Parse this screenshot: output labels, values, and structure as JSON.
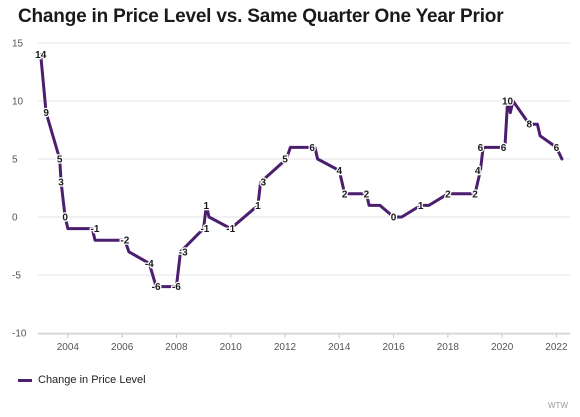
{
  "chart_data": {
    "type": "line",
    "title": "Change in Price Level vs. Same Quarter One Year Prior",
    "xlabel": "",
    "ylabel": "",
    "xlim": [
      2002.9,
      2022.5
    ],
    "ylim": [
      -10,
      15
    ],
    "y_ticks": [
      15,
      10,
      5,
      0,
      -5,
      -10
    ],
    "x_ticks": [
      2004,
      2006,
      2008,
      2010,
      2012,
      2014,
      2016,
      2018,
      2020,
      2022
    ],
    "grid": "horizontal",
    "legend_position": "bottom-left",
    "series": [
      {
        "name": "Change in Price Level",
        "color": "#4b1e6e",
        "points": [
          [
            2003.0,
            14
          ],
          [
            2003.2,
            9
          ],
          [
            2003.7,
            5
          ],
          [
            2003.75,
            3
          ],
          [
            2003.9,
            0
          ],
          [
            2004.0,
            -1
          ],
          [
            2004.9,
            -1
          ],
          [
            2005.0,
            -2
          ],
          [
            2006.1,
            -2
          ],
          [
            2006.25,
            -3
          ],
          [
            2007.0,
            -4
          ],
          [
            2007.25,
            -6
          ],
          [
            2008.0,
            -6
          ],
          [
            2008.15,
            -3
          ],
          [
            2009.0,
            -1
          ],
          [
            2009.1,
            1
          ],
          [
            2009.2,
            0
          ],
          [
            2010.0,
            -1
          ],
          [
            2011.0,
            1
          ],
          [
            2011.1,
            3
          ],
          [
            2012.05,
            5
          ],
          [
            2012.2,
            6
          ],
          [
            2013.1,
            6
          ],
          [
            2013.2,
            5
          ],
          [
            2014.0,
            4
          ],
          [
            2014.2,
            2
          ],
          [
            2015.0,
            2
          ],
          [
            2015.1,
            1
          ],
          [
            2015.5,
            1
          ],
          [
            2016.0,
            0
          ],
          [
            2016.3,
            0
          ],
          [
            2017.0,
            1
          ],
          [
            2017.3,
            1
          ],
          [
            2018.0,
            2
          ],
          [
            2019.0,
            2
          ],
          [
            2019.2,
            4
          ],
          [
            2019.3,
            6
          ],
          [
            2020.1,
            6
          ],
          [
            2020.2,
            10
          ],
          [
            2020.3,
            9
          ],
          [
            2020.4,
            10
          ],
          [
            2021.0,
            8
          ],
          [
            2021.3,
            8
          ],
          [
            2021.4,
            7
          ],
          [
            2022.0,
            6
          ],
          [
            2022.2,
            5
          ]
        ]
      }
    ],
    "data_labels": [
      {
        "x": 2003.0,
        "y": 14,
        "text": "14"
      },
      {
        "x": 2003.2,
        "y": 9,
        "text": "9"
      },
      {
        "x": 2003.7,
        "y": 5,
        "text": "5"
      },
      {
        "x": 2003.75,
        "y": 3,
        "text": "3"
      },
      {
        "x": 2003.9,
        "y": 0,
        "text": "0"
      },
      {
        "x": 2005.0,
        "y": -1,
        "text": "-1"
      },
      {
        "x": 2006.1,
        "y": -2,
        "text": "-2"
      },
      {
        "x": 2007.0,
        "y": -4,
        "text": "-4"
      },
      {
        "x": 2007.25,
        "y": -6,
        "text": "-6"
      },
      {
        "x": 2008.0,
        "y": -6,
        "text": "-6"
      },
      {
        "x": 2008.25,
        "y": -3,
        "text": "-3"
      },
      {
        "x": 2009.1,
        "y": 1,
        "text": "1"
      },
      {
        "x": 2009.05,
        "y": -1,
        "text": "-1"
      },
      {
        "x": 2010.0,
        "y": -1,
        "text": "-1"
      },
      {
        "x": 2011.0,
        "y": 1,
        "text": "1"
      },
      {
        "x": 2011.2,
        "y": 3,
        "text": "3"
      },
      {
        "x": 2012.0,
        "y": 5,
        "text": "5"
      },
      {
        "x": 2013.0,
        "y": 6,
        "text": "6"
      },
      {
        "x": 2014.0,
        "y": 4,
        "text": "4"
      },
      {
        "x": 2014.2,
        "y": 2,
        "text": "2"
      },
      {
        "x": 2015.0,
        "y": 2,
        "text": "2"
      },
      {
        "x": 2016.0,
        "y": 0,
        "text": "0"
      },
      {
        "x": 2017.0,
        "y": 1,
        "text": "1"
      },
      {
        "x": 2018.0,
        "y": 2,
        "text": "2"
      },
      {
        "x": 2019.0,
        "y": 2,
        "text": "2"
      },
      {
        "x": 2019.1,
        "y": 4,
        "text": "4"
      },
      {
        "x": 2019.2,
        "y": 6,
        "text": "6"
      },
      {
        "x": 2020.05,
        "y": 6,
        "text": "6"
      },
      {
        "x": 2020.2,
        "y": 10,
        "text": "10"
      },
      {
        "x": 2021.0,
        "y": 8,
        "text": "8"
      },
      {
        "x": 2022.0,
        "y": 6,
        "text": "6"
      }
    ]
  },
  "legend": {
    "label": "Change in Price Level",
    "color": "#4b1e6e"
  },
  "footer": {
    "source": "WTW"
  },
  "colors": {
    "grid": "#e3e3e3",
    "axis": "#cccccc",
    "line": "#4b1e6e"
  }
}
